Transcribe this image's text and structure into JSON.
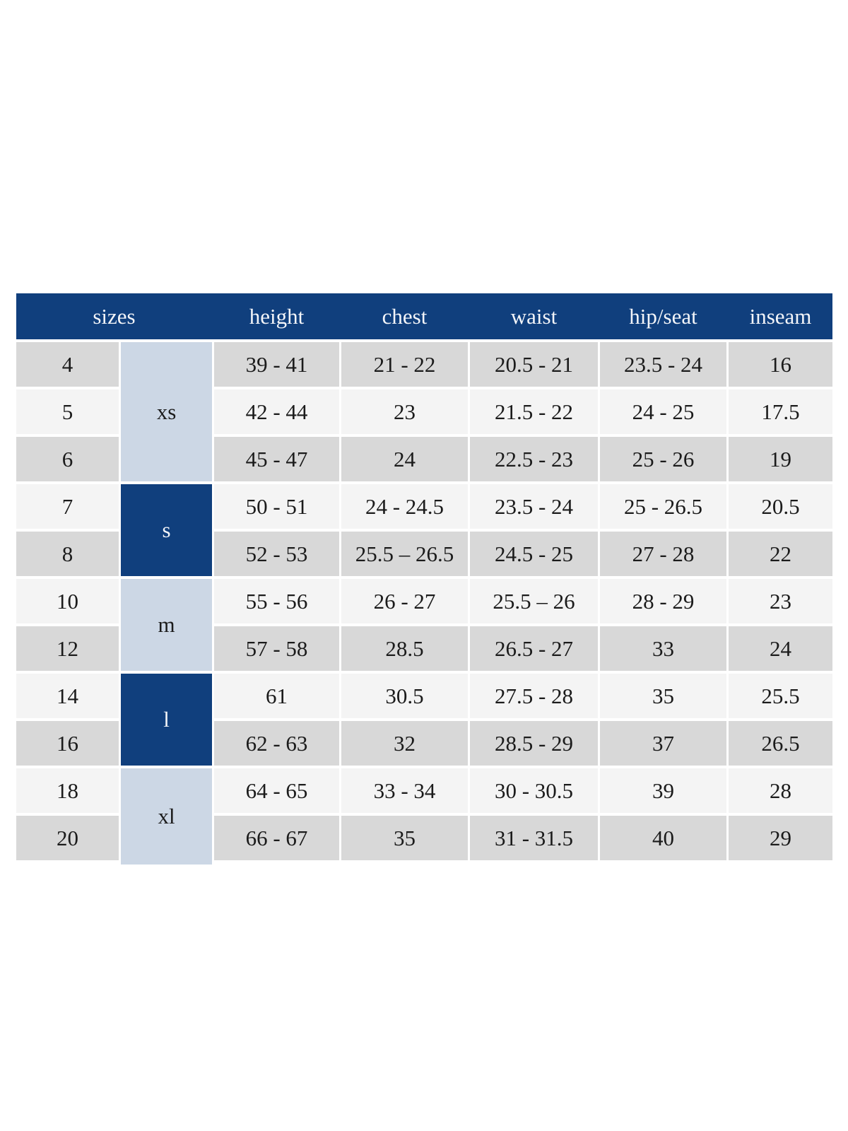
{
  "colors": {
    "navy": "#103f7d",
    "lightblue": "#ccd7e5",
    "gray": "#d8d8d8",
    "offwhite": "#f4f4f4",
    "text": "#1b1b1b",
    "header-text": "#f3f5f9"
  },
  "chart_data": {
    "type": "table",
    "columns": [
      "sizes",
      "height",
      "chest",
      "waist",
      "hip/seat",
      "inseam"
    ],
    "header": {
      "sizes": "sizes",
      "height": "height",
      "chest": "chest",
      "waist": "waist",
      "hip_seat": "hip/seat",
      "inseam": "inseam"
    },
    "groups": [
      {
        "label": "xs",
        "rows": 3,
        "style": "light"
      },
      {
        "label": "s",
        "rows": 2,
        "style": "dark"
      },
      {
        "label": "m",
        "rows": 2,
        "style": "light"
      },
      {
        "label": "l",
        "rows": 2,
        "style": "dark"
      },
      {
        "label": "xl",
        "rows": 2,
        "style": "light"
      }
    ],
    "rows": [
      {
        "size": "4",
        "group": "xs",
        "height": "39 - 41",
        "chest": "21 - 22",
        "waist": "20.5 - 21",
        "hip_seat": "23.5 - 24",
        "inseam": "16"
      },
      {
        "size": "5",
        "group": "xs",
        "height": "42 - 44",
        "chest": "23",
        "waist": "21.5 - 22",
        "hip_seat": "24 - 25",
        "inseam": "17.5"
      },
      {
        "size": "6",
        "group": "xs",
        "height": "45 - 47",
        "chest": "24",
        "waist": "22.5 - 23",
        "hip_seat": "25 - 26",
        "inseam": "19"
      },
      {
        "size": "7",
        "group": "s",
        "height": "50 - 51",
        "chest": "24 - 24.5",
        "waist": "23.5 - 24",
        "hip_seat": "25 - 26.5",
        "inseam": "20.5"
      },
      {
        "size": "8",
        "group": "s",
        "height": "52 - 53",
        "chest": "25.5 – 26.5",
        "waist": "24.5 - 25",
        "hip_seat": "27 - 28",
        "inseam": "22"
      },
      {
        "size": "10",
        "group": "m",
        "height": "55 - 56",
        "chest": "26 - 27",
        "waist": "25.5 – 26",
        "hip_seat": "28 - 29",
        "inseam": "23"
      },
      {
        "size": "12",
        "group": "m",
        "height": "57 - 58",
        "chest": "28.5",
        "waist": "26.5 - 27",
        "hip_seat": "33",
        "inseam": "24"
      },
      {
        "size": "14",
        "group": "l",
        "height": "61",
        "chest": "30.5",
        "waist": "27.5 - 28",
        "hip_seat": "35",
        "inseam": "25.5"
      },
      {
        "size": "16",
        "group": "l",
        "height": "62 - 63",
        "chest": "32",
        "waist": "28.5 - 29",
        "hip_seat": "37",
        "inseam": "26.5"
      },
      {
        "size": "18",
        "group": "xl",
        "height": "64 - 65",
        "chest": "33 - 34",
        "waist": "30 - 30.5",
        "hip_seat": "39",
        "inseam": "28"
      },
      {
        "size": "20",
        "group": "xl",
        "height": "66 - 67",
        "chest": "35",
        "waist": "31 - 31.5",
        "hip_seat": "40",
        "inseam": "29"
      }
    ]
  }
}
